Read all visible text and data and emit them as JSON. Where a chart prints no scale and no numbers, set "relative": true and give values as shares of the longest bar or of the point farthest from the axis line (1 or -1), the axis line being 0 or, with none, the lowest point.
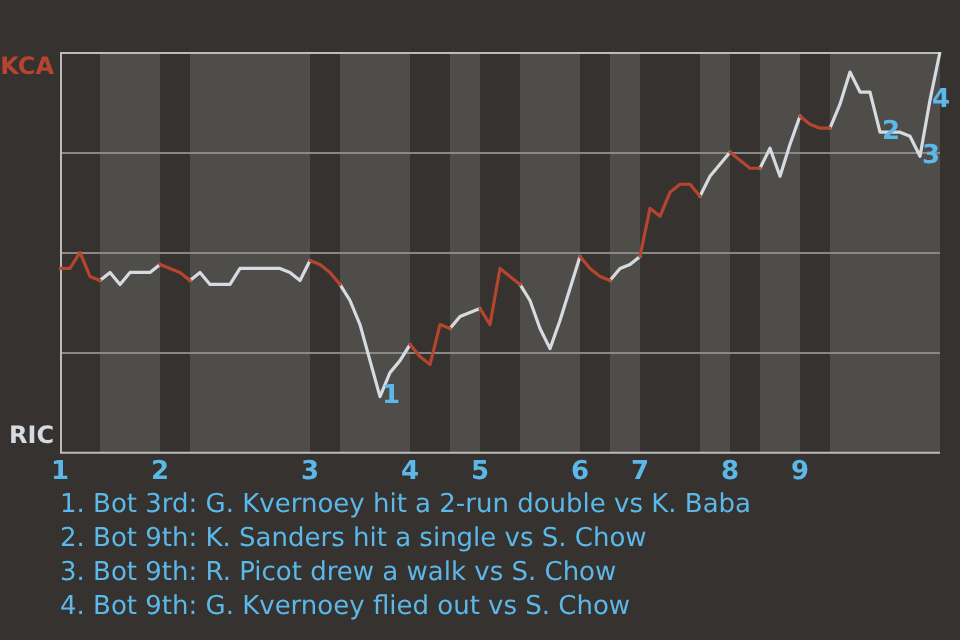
{
  "chart_data": {
    "type": "line",
    "relative": true,
    "categories": [
      "1",
      null,
      null,
      null,
      null,
      null,
      null,
      null,
      null,
      null,
      "2",
      null,
      null,
      null,
      null,
      null,
      null,
      null,
      null,
      null,
      null,
      null,
      null,
      null,
      null,
      "3",
      null,
      null,
      null,
      null,
      null,
      null,
      null,
      null,
      null,
      "4",
      null,
      null,
      null,
      null,
      null,
      null,
      "5",
      null,
      null,
      null,
      null,
      null,
      null,
      null,
      null,
      null,
      "6",
      null,
      null,
      null,
      null,
      null,
      "7",
      null,
      null,
      null,
      null,
      null,
      null,
      null,
      null,
      "8",
      null,
      null,
      null,
      null,
      null,
      null,
      "9",
      null,
      null,
      null,
      null,
      null,
      null,
      null,
      null,
      null,
      null,
      null,
      null,
      null,
      null
    ],
    "series": [
      {
        "name": "KCA",
        "color": "#b5452f",
        "values": [
          0.46,
          0.46,
          0.5,
          0.44,
          0.43,
          null,
          null,
          null,
          null,
          null,
          0.47,
          0.46,
          0.45,
          0.43,
          null,
          null,
          null,
          null,
          null,
          null,
          null,
          null,
          null,
          null,
          null,
          0.48,
          0.47,
          0.45,
          0.42,
          null,
          null,
          null,
          null,
          null,
          null,
          0.27,
          0.24,
          0.22,
          0.32,
          0.31,
          null,
          null,
          0.36,
          0.32,
          0.46,
          0.44,
          0.42,
          null,
          null,
          null,
          null,
          null,
          0.49,
          0.46,
          0.44,
          0.43,
          null,
          null,
          0.49,
          0.61,
          0.59,
          0.65,
          0.67,
          0.67,
          0.64,
          null,
          null,
          0.75,
          0.73,
          0.71,
          0.71,
          null,
          null,
          null,
          0.84,
          0.82,
          0.81,
          0.81,
          null,
          null,
          null,
          null,
          null,
          null,
          null,
          null,
          null,
          null,
          null
        ]
      },
      {
        "name": "RIC",
        "color": "#d5dbe0",
        "values": [
          null,
          null,
          null,
          null,
          0.43,
          0.45,
          0.42,
          0.45,
          0.45,
          0.45,
          0.47,
          null,
          null,
          0.43,
          0.45,
          0.42,
          0.42,
          0.42,
          0.46,
          0.46,
          0.46,
          0.46,
          0.46,
          0.45,
          0.43,
          0.48,
          null,
          null,
          0.42,
          0.38,
          0.32,
          0.23,
          0.14,
          0.2,
          0.23,
          0.27,
          null,
          null,
          null,
          0.31,
          0.34,
          0.35,
          0.36,
          null,
          null,
          null,
          0.42,
          0.38,
          0.31,
          0.26,
          0.33,
          0.41,
          0.49,
          null,
          null,
          0.43,
          0.46,
          0.47,
          0.49,
          null,
          null,
          null,
          null,
          null,
          0.64,
          0.69,
          0.72,
          0.75,
          null,
          null,
          0.71,
          0.76,
          0.69,
          0.77,
          0.84,
          null,
          null,
          0.81,
          0.87,
          0.95,
          0.9,
          0.9,
          0.8,
          0.8,
          0.8,
          0.79,
          0.74,
          0.88,
          1.0
        ]
      }
    ],
    "grid": "y",
    "legend": "left",
    "marker": "none",
    "annotations": [
      {
        "text": "1",
        "y": 0.14
      },
      {
        "text": "2",
        "y": 0.8
      },
      {
        "text": "3",
        "y": 0.74
      },
      {
        "text": "4",
        "y": 0.88
      },
      "1. Bot 3rd: G. Kvernoey hit a 2-run double vs K. Baba",
      "2. Bot 9th: K. Sanders hit a single vs S. Chow",
      "3. Bot 9th: R. Picot drew a walk vs S. Chow",
      "4. Bot 9th: G. Kvernoey flied out vs S. Chow"
    ]
  }
}
